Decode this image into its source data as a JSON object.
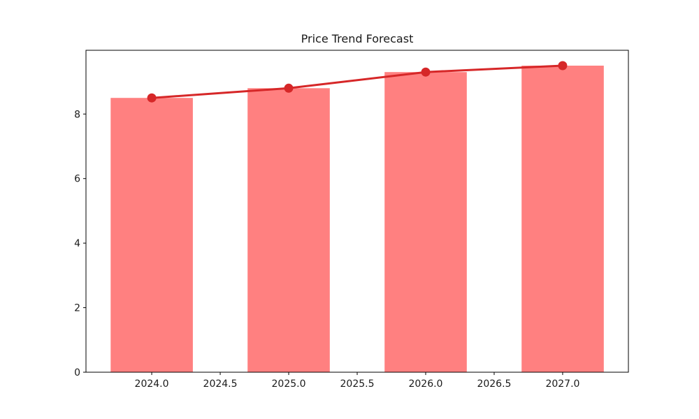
{
  "page": {
    "background": "#ffffff"
  },
  "chart_data": {
    "type": "bar",
    "title": "Price Trend Forecast",
    "x": [
      2024,
      2025,
      2026,
      2027
    ],
    "series": [
      {
        "name": "price-bars",
        "type": "bar",
        "values": [
          8.5,
          8.8,
          9.3,
          9.5
        ],
        "color": "#ff8080",
        "bar_width": 0.6
      },
      {
        "name": "trend-line",
        "type": "line",
        "values": [
          8.5,
          8.8,
          9.3,
          9.5
        ],
        "color": "#d62728",
        "marker": "circle",
        "line_width": 3,
        "marker_radius": 6.5
      }
    ],
    "xtick_values": [
      2024.0,
      2024.5,
      2025.0,
      2025.5,
      2026.0,
      2026.5,
      2027.0
    ],
    "xtick_labels": [
      "2024.0",
      "2024.5",
      "2025.0",
      "2025.5",
      "2026.0",
      "2026.5",
      "2027.0"
    ],
    "ytick_values": [
      0,
      2,
      4,
      6,
      8
    ],
    "ytick_labels": [
      "0",
      "2",
      "4",
      "6",
      "8"
    ],
    "xlim": [
      2023.52,
      2027.48
    ],
    "ylim": [
      0,
      9.975
    ],
    "grid": false,
    "legend": null,
    "axis_color": "#000000",
    "text_color": "#1a1a1a"
  }
}
